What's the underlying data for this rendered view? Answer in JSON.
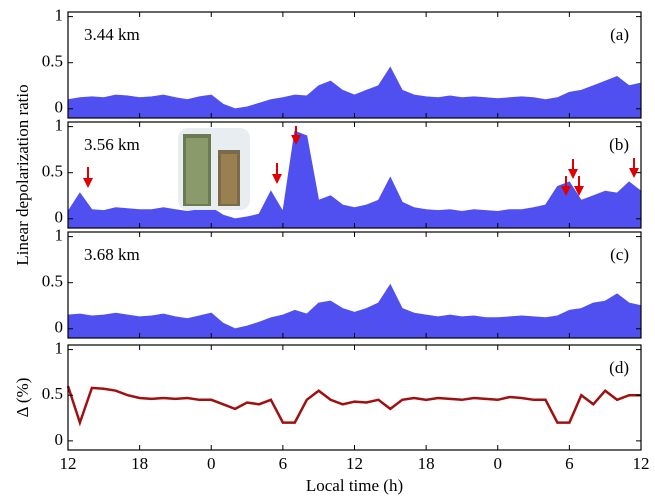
{
  "chart_data": [
    {
      "type": "area",
      "label": "3.44 km",
      "panel": "(a)",
      "color": "#5050f0",
      "x": [
        0,
        1,
        2,
        3,
        4,
        5,
        6,
        7,
        8,
        9,
        10,
        11,
        12,
        13,
        14,
        15,
        16,
        17,
        18,
        19,
        20,
        21,
        22,
        23,
        24,
        25,
        26,
        27,
        28,
        29,
        30,
        31,
        32,
        33,
        34,
        35,
        36,
        37,
        38,
        39,
        40,
        41,
        42,
        43,
        44,
        45,
        46,
        47,
        48
      ],
      "values": [
        0.1,
        0.12,
        0.13,
        0.12,
        0.15,
        0.14,
        0.12,
        0.13,
        0.15,
        0.12,
        0.1,
        0.13,
        0.15,
        0.05,
        0.0,
        0.02,
        0.06,
        0.1,
        0.12,
        0.15,
        0.14,
        0.25,
        0.3,
        0.2,
        0.15,
        0.2,
        0.25,
        0.45,
        0.2,
        0.15,
        0.13,
        0.12,
        0.14,
        0.12,
        0.13,
        0.12,
        0.11,
        0.12,
        0.13,
        0.12,
        0.1,
        0.12,
        0.18,
        0.2,
        0.25,
        0.3,
        0.35,
        0.25,
        0.28
      ],
      "xlim": [
        0,
        48
      ],
      "xticks": [
        {
          "value": 0,
          "label": "12"
        },
        {
          "value": 6,
          "label": "18"
        },
        {
          "value": 12,
          "label": "0"
        },
        {
          "value": 18,
          "label": "6"
        },
        {
          "value": 24,
          "label": "12"
        },
        {
          "value": 30,
          "label": "18"
        },
        {
          "value": 36,
          "label": "0"
        },
        {
          "value": 42,
          "label": "6"
        },
        {
          "value": 48,
          "label": "12"
        }
      ],
      "ylim": [
        -0.1,
        1.05
      ],
      "yticks": [
        0,
        0.5,
        1
      ]
    },
    {
      "type": "area",
      "label": "3.56 km",
      "panel": "(b)",
      "color": "#5050f0",
      "ylabel": "Linear depolarization ratio",
      "x": [
        0,
        1,
        2,
        3,
        4,
        5,
        6,
        7,
        8,
        9,
        10,
        11,
        12,
        13,
        14,
        15,
        16,
        17,
        18,
        19,
        20,
        21,
        22,
        23,
        24,
        25,
        26,
        27,
        28,
        29,
        30,
        31,
        32,
        33,
        34,
        35,
        36,
        37,
        38,
        39,
        40,
        41,
        42,
        43,
        44,
        45,
        46,
        47,
        48
      ],
      "values": [
        0.08,
        0.28,
        0.1,
        0.09,
        0.12,
        0.11,
        0.1,
        0.1,
        0.12,
        0.1,
        0.08,
        0.1,
        0.12,
        0.04,
        0.0,
        0.02,
        0.05,
        0.3,
        0.08,
        0.95,
        0.9,
        0.2,
        0.25,
        0.15,
        0.12,
        0.15,
        0.2,
        0.45,
        0.18,
        0.12,
        0.1,
        0.09,
        0.1,
        0.08,
        0.1,
        0.09,
        0.08,
        0.1,
        0.1,
        0.12,
        0.15,
        0.35,
        0.4,
        0.2,
        0.25,
        0.3,
        0.28,
        0.4,
        0.3
      ],
      "xlim": [
        0,
        48
      ],
      "xticks": [
        {
          "value": 0,
          "label": "12"
        },
        {
          "value": 6,
          "label": "18"
        },
        {
          "value": 12,
          "label": "0"
        },
        {
          "value": 18,
          "label": "6"
        },
        {
          "value": 24,
          "label": "12"
        },
        {
          "value": 30,
          "label": "18"
        },
        {
          "value": 36,
          "label": "0"
        },
        {
          "value": 42,
          "label": "6"
        },
        {
          "value": 48,
          "label": "12"
        }
      ],
      "ylim": [
        -0.1,
        1.05
      ],
      "yticks": [
        0,
        0.5,
        1
      ]
    },
    {
      "type": "area",
      "label": "3.68 km",
      "panel": "(c)",
      "color": "#5050f0",
      "x": [
        0,
        1,
        2,
        3,
        4,
        5,
        6,
        7,
        8,
        9,
        10,
        11,
        12,
        13,
        14,
        15,
        16,
        17,
        18,
        19,
        20,
        21,
        22,
        23,
        24,
        25,
        26,
        27,
        28,
        29,
        30,
        31,
        32,
        33,
        34,
        35,
        36,
        37,
        38,
        39,
        40,
        41,
        42,
        43,
        44,
        45,
        46,
        47,
        48
      ],
      "values": [
        0.15,
        0.16,
        0.14,
        0.15,
        0.17,
        0.15,
        0.13,
        0.14,
        0.16,
        0.13,
        0.11,
        0.14,
        0.17,
        0.06,
        0.0,
        0.03,
        0.07,
        0.12,
        0.15,
        0.2,
        0.16,
        0.28,
        0.3,
        0.22,
        0.18,
        0.22,
        0.28,
        0.48,
        0.22,
        0.17,
        0.15,
        0.13,
        0.15,
        0.13,
        0.14,
        0.12,
        0.12,
        0.13,
        0.14,
        0.13,
        0.12,
        0.14,
        0.2,
        0.22,
        0.28,
        0.3,
        0.38,
        0.28,
        0.25
      ],
      "xlim": [
        0,
        48
      ],
      "xticks": [
        {
          "value": 0,
          "label": "12"
        },
        {
          "value": 6,
          "label": "18"
        },
        {
          "value": 12,
          "label": "0"
        },
        {
          "value": 18,
          "label": "6"
        },
        {
          "value": 24,
          "label": "12"
        },
        {
          "value": 30,
          "label": "18"
        },
        {
          "value": 36,
          "label": "0"
        },
        {
          "value": 42,
          "label": "6"
        },
        {
          "value": 48,
          "label": "12"
        }
      ],
      "ylim": [
        -0.1,
        1.05
      ],
      "yticks": [
        0,
        0.5,
        1
      ]
    },
    {
      "type": "line",
      "panel": "(d)",
      "color": "#a01010",
      "ylabel": "Δ (%)",
      "xlabel": "Local time (h)",
      "x": [
        0,
        1,
        2,
        3,
        4,
        5,
        6,
        7,
        8,
        9,
        10,
        11,
        12,
        13,
        14,
        15,
        16,
        17,
        18,
        19,
        20,
        21,
        22,
        23,
        24,
        25,
        26,
        27,
        28,
        29,
        30,
        31,
        32,
        33,
        34,
        35,
        36,
        37,
        38,
        39,
        40,
        41,
        42,
        43,
        44,
        45,
        46,
        47,
        48
      ],
      "values": [
        0.6,
        0.2,
        0.58,
        0.57,
        0.55,
        0.5,
        0.47,
        0.46,
        0.47,
        0.46,
        0.47,
        0.45,
        0.45,
        0.4,
        0.35,
        0.42,
        0.4,
        0.45,
        0.2,
        0.2,
        0.45,
        0.55,
        0.45,
        0.4,
        0.43,
        0.42,
        0.45,
        0.35,
        0.45,
        0.47,
        0.45,
        0.47,
        0.46,
        0.45,
        0.47,
        0.46,
        0.45,
        0.48,
        0.47,
        0.45,
        0.45,
        0.2,
        0.2,
        0.5,
        0.4,
        0.55,
        0.45,
        0.5,
        0.5
      ],
      "xlim": [
        0,
        48
      ],
      "xticks": [
        {
          "value": 0,
          "label": "12"
        },
        {
          "value": 6,
          "label": "18"
        },
        {
          "value": 12,
          "label": "0"
        },
        {
          "value": 18,
          "label": "6"
        },
        {
          "value": 24,
          "label": "12"
        },
        {
          "value": 30,
          "label": "18"
        },
        {
          "value": 36,
          "label": "0"
        },
        {
          "value": 42,
          "label": "6"
        },
        {
          "value": 48,
          "label": "12"
        }
      ],
      "ylim": [
        -0.1,
        1.05
      ],
      "yticks": [
        0,
        0.5,
        1
      ]
    }
  ]
}
